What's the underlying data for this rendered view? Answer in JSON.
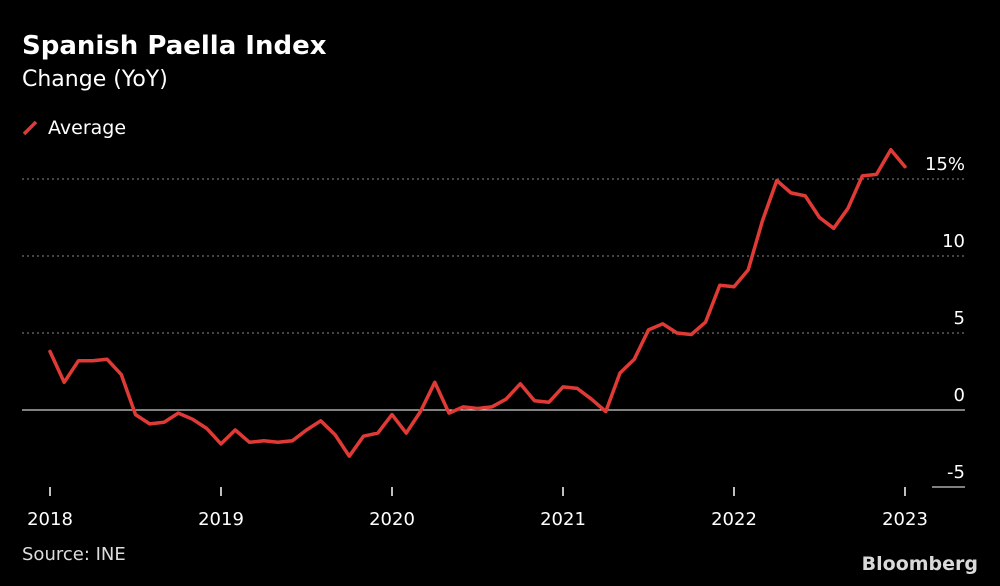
{
  "title": "Spanish Paella Index",
  "subtitle": "Change (YoY)",
  "source": "Source: INE",
  "logo": "Bloomberg",
  "colors": {
    "background": "#000000",
    "series": "#e03a36",
    "grid": "#8a8a8a",
    "axis": "#ffffff"
  },
  "chart_data": {
    "type": "line",
    "grid": true,
    "legend_position": "top-left",
    "ylim": [
      -5,
      15
    ],
    "yticks": [
      -5,
      0,
      5,
      10,
      15
    ],
    "ytick_labels": [
      "-5",
      "0",
      "5",
      "10",
      "15%"
    ],
    "xlim": [
      2018,
      2023
    ],
    "xticks": [
      2018,
      2019,
      2020,
      2021,
      2022,
      2023
    ],
    "xtick_labels": [
      "2018",
      "2019",
      "2020",
      "2021",
      "2022",
      "2023"
    ],
    "series": [
      {
        "name": "Average",
        "color": "#e03a36",
        "x": [
          "2018-01",
          "2018-02",
          "2018-03",
          "2018-04",
          "2018-05",
          "2018-06",
          "2018-07",
          "2018-08",
          "2018-09",
          "2018-10",
          "2018-11",
          "2018-12",
          "2019-01",
          "2019-02",
          "2019-03",
          "2019-04",
          "2019-05",
          "2019-06",
          "2019-07",
          "2019-08",
          "2019-09",
          "2019-10",
          "2019-11",
          "2019-12",
          "2020-01",
          "2020-02",
          "2020-03",
          "2020-04",
          "2020-05",
          "2020-06",
          "2020-07",
          "2020-08",
          "2020-09",
          "2020-10",
          "2020-11",
          "2020-12",
          "2021-01",
          "2021-02",
          "2021-03",
          "2021-04",
          "2021-05",
          "2021-06",
          "2021-07",
          "2021-08",
          "2021-09",
          "2021-10",
          "2021-11",
          "2021-12",
          "2022-01",
          "2022-02",
          "2022-03",
          "2022-04",
          "2022-05",
          "2022-06",
          "2022-07",
          "2022-08",
          "2022-09",
          "2022-10",
          "2022-11",
          "2022-12",
          "2023-01"
        ],
        "values": [
          3.8,
          1.8,
          3.2,
          3.2,
          3.3,
          2.3,
          -0.3,
          -0.9,
          -0.8,
          -0.2,
          -0.6,
          -1.2,
          -2.2,
          -1.3,
          -2.1,
          -2.0,
          -2.1,
          -2.0,
          -1.3,
          -0.7,
          -1.6,
          -3.0,
          -1.7,
          -1.5,
          -0.3,
          -1.5,
          -0.1,
          1.8,
          -0.2,
          0.2,
          0.1,
          0.2,
          0.7,
          1.7,
          0.6,
          0.5,
          1.5,
          1.4,
          0.7,
          -0.1,
          2.4,
          3.3,
          5.2,
          5.6,
          5.0,
          4.9,
          5.7,
          8.1,
          8.0,
          9.1,
          12.3,
          14.9,
          14.1,
          13.9,
          12.5,
          11.8,
          13.1,
          15.2,
          15.3,
          16.9,
          15.8
        ]
      }
    ]
  }
}
